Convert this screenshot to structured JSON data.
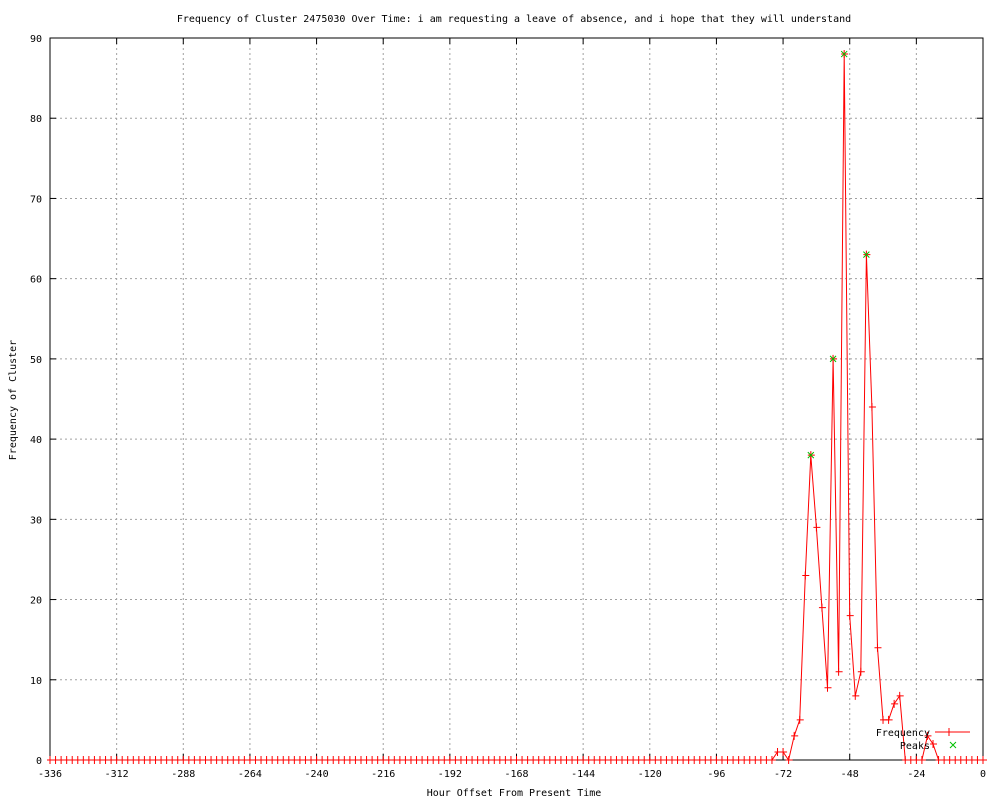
{
  "chart_data": {
    "type": "line",
    "title": "Frequency of Cluster 2475030 Over Time: i am requesting a leave of absence, and i hope that they will understand",
    "xlabel": "Hour Offset From Present Time",
    "ylabel": "Frequency of Cluster",
    "xlim": [
      -336,
      0
    ],
    "ylim": [
      0,
      90
    ],
    "xticks": [
      -336,
      -312,
      -288,
      -264,
      -240,
      -216,
      -192,
      -168,
      -144,
      -120,
      -96,
      -72,
      -48,
      -24,
      0
    ],
    "yticks": [
      0,
      10,
      20,
      30,
      40,
      50,
      60,
      70,
      80,
      90
    ],
    "grid": true,
    "legend_position": "bottom-right",
    "series": [
      {
        "name": "Frequency",
        "color": "#ff0000",
        "marker": "plus",
        "x": [
          -336,
          -334,
          -332,
          -330,
          -328,
          -326,
          -324,
          -322,
          -320,
          -318,
          -316,
          -314,
          -312,
          -310,
          -308,
          -306,
          -304,
          -302,
          -300,
          -298,
          -296,
          -294,
          -292,
          -290,
          -288,
          -286,
          -284,
          -282,
          -280,
          -278,
          -276,
          -274,
          -272,
          -270,
          -268,
          -266,
          -264,
          -262,
          -260,
          -258,
          -256,
          -254,
          -252,
          -250,
          -248,
          -246,
          -244,
          -242,
          -240,
          -238,
          -236,
          -234,
          -232,
          -230,
          -228,
          -226,
          -224,
          -222,
          -220,
          -218,
          -216,
          -214,
          -212,
          -210,
          -208,
          -206,
          -204,
          -202,
          -200,
          -198,
          -196,
          -194,
          -192,
          -190,
          -188,
          -186,
          -184,
          -182,
          -180,
          -178,
          -176,
          -174,
          -172,
          -170,
          -168,
          -166,
          -164,
          -162,
          -160,
          -158,
          -156,
          -154,
          -152,
          -150,
          -148,
          -146,
          -144,
          -142,
          -140,
          -138,
          -136,
          -134,
          -132,
          -130,
          -128,
          -126,
          -124,
          -122,
          -120,
          -118,
          -116,
          -114,
          -112,
          -110,
          -108,
          -106,
          -104,
          -102,
          -100,
          -98,
          -96,
          -94,
          -92,
          -90,
          -88,
          -86,
          -84,
          -82,
          -80,
          -78,
          -76,
          -74,
          -72,
          -70,
          -68,
          -66,
          -64,
          -62,
          -60,
          -58,
          -56,
          -54,
          -52,
          -50,
          -48,
          -46,
          -44,
          -42,
          -40,
          -38,
          -36,
          -34,
          -32,
          -30,
          -28,
          -26,
          -24,
          -22,
          -20,
          -18,
          -16,
          -14,
          -12,
          -10,
          -8,
          -6,
          -4,
          -2,
          0
        ],
        "y": [
          0,
          0,
          0,
          0,
          0,
          0,
          0,
          0,
          0,
          0,
          0,
          0,
          0,
          0,
          0,
          0,
          0,
          0,
          0,
          0,
          0,
          0,
          0,
          0,
          0,
          0,
          0,
          0,
          0,
          0,
          0,
          0,
          0,
          0,
          0,
          0,
          0,
          0,
          0,
          0,
          0,
          0,
          0,
          0,
          0,
          0,
          0,
          0,
          0,
          0,
          0,
          0,
          0,
          0,
          0,
          0,
          0,
          0,
          0,
          0,
          0,
          0,
          0,
          0,
          0,
          0,
          0,
          0,
          0,
          0,
          0,
          0,
          0,
          0,
          0,
          0,
          0,
          0,
          0,
          0,
          0,
          0,
          0,
          0,
          0,
          0,
          0,
          0,
          0,
          0,
          0,
          0,
          0,
          0,
          0,
          0,
          0,
          0,
          0,
          0,
          0,
          0,
          0,
          0,
          0,
          0,
          0,
          0,
          0,
          0,
          0,
          0,
          0,
          0,
          0,
          0,
          0,
          0,
          0,
          0,
          0,
          0,
          0,
          0,
          0,
          0,
          0,
          0,
          0,
          0,
          0,
          1,
          1,
          0,
          3,
          5,
          23,
          38,
          29,
          19,
          9,
          50,
          11,
          88,
          18,
          8,
          11,
          63,
          44,
          14,
          5,
          5,
          7,
          8,
          0,
          0,
          0,
          0,
          3,
          2,
          0,
          0,
          0,
          0,
          0,
          0,
          0,
          0,
          0
        ]
      },
      {
        "name": "Peaks",
        "color": "#00c000",
        "marker": "cross",
        "x": [
          -62,
          -54,
          -50,
          -42
        ],
        "y": [
          38,
          50,
          88,
          63
        ]
      }
    ]
  }
}
